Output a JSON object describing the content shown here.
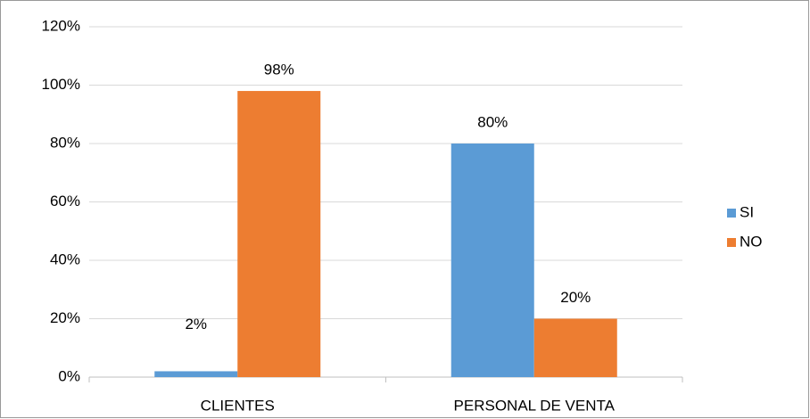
{
  "chart_data": {
    "type": "bar",
    "categories": [
      "CLIENTES",
      "PERSONAL DE VENTA"
    ],
    "series": [
      {
        "name": "SI",
        "color": "#5b9bd5",
        "values": [
          2,
          80
        ],
        "value_labels": [
          "2%",
          "80%"
        ]
      },
      {
        "name": "NO",
        "color": "#ed7d31",
        "values": [
          98,
          20
        ],
        "value_labels": [
          "98%",
          "20%"
        ]
      }
    ],
    "ylim": [
      0,
      120
    ],
    "yticks": [
      {
        "value": 0,
        "label": "0%"
      },
      {
        "value": 20,
        "label": "20%"
      },
      {
        "value": 40,
        "label": "40%"
      },
      {
        "value": 60,
        "label": "60%"
      },
      {
        "value": 80,
        "label": "80%"
      },
      {
        "value": 100,
        "label": "100%"
      },
      {
        "value": 120,
        "label": "120%"
      }
    ],
    "grid": true,
    "legend": "right"
  }
}
